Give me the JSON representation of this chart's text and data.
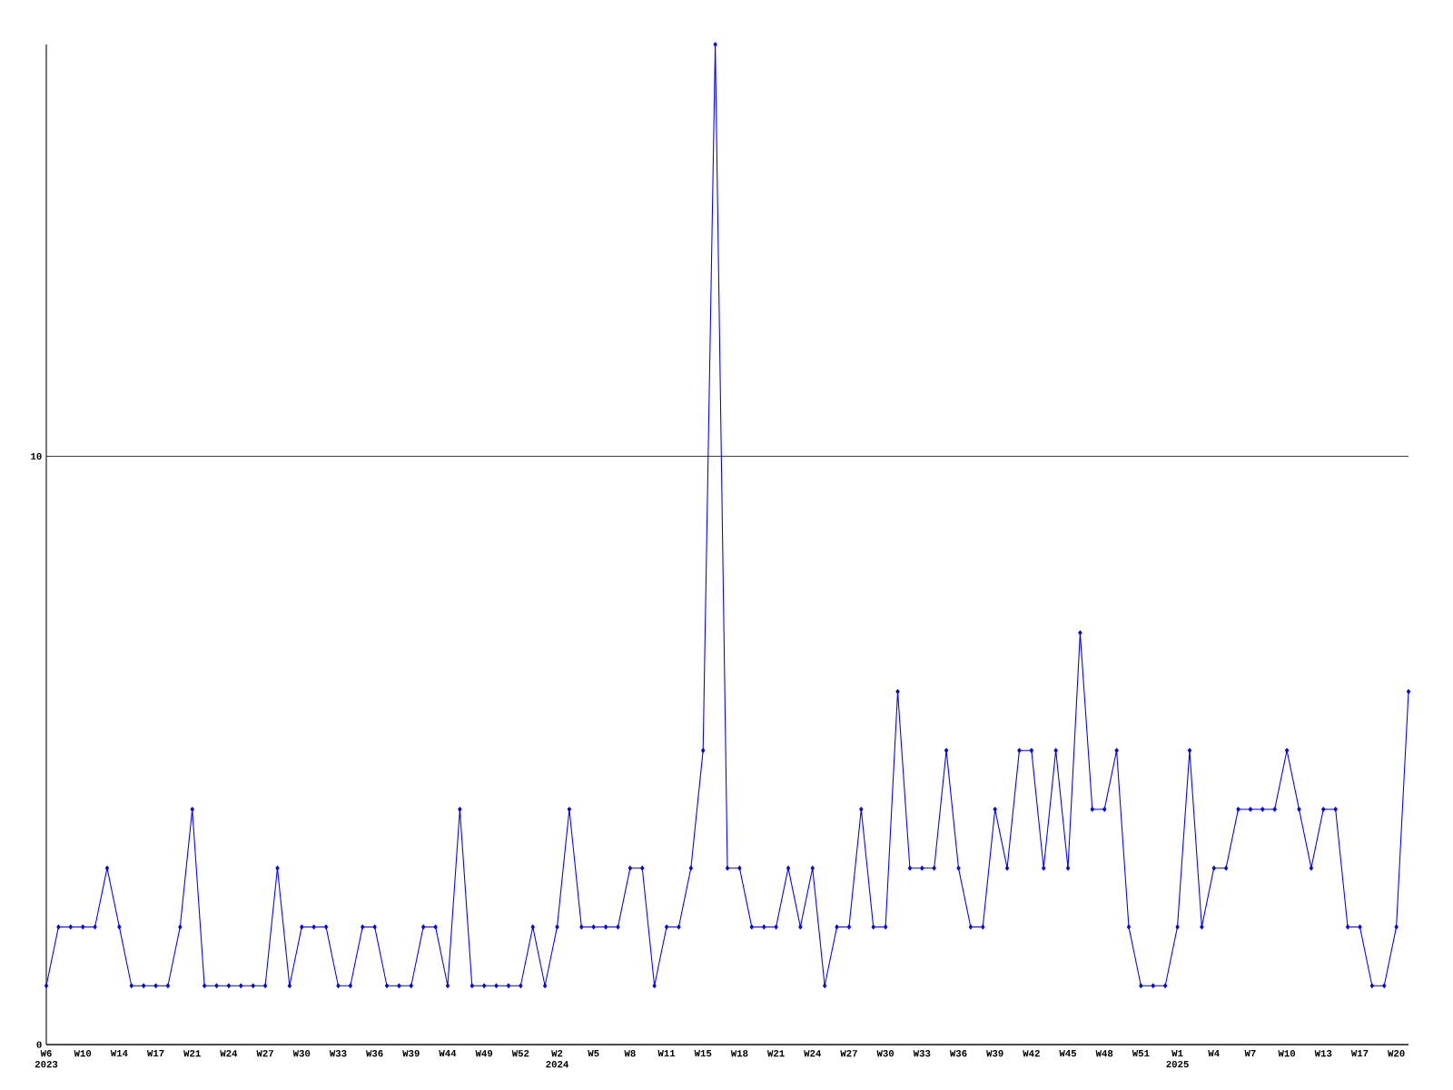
{
  "chart_data": {
    "type": "line",
    "categories": [
      "W6 2023",
      null,
      null,
      "W10",
      null,
      null,
      "W14",
      null,
      null,
      "W17",
      null,
      null,
      "W21",
      null,
      null,
      "W24",
      null,
      null,
      "W27",
      null,
      null,
      "W30",
      null,
      null,
      "W33",
      null,
      null,
      "W36",
      null,
      null,
      "W39",
      null,
      null,
      "W44",
      null,
      null,
      "W49",
      null,
      null,
      "W52",
      null,
      null,
      "W2 2024",
      null,
      null,
      "W5",
      null,
      null,
      "W8",
      null,
      null,
      "W11",
      null,
      null,
      "W15",
      null,
      null,
      "W18",
      null,
      null,
      "W21",
      null,
      null,
      "W24",
      null,
      null,
      "W27",
      null,
      null,
      "W30",
      null,
      null,
      "W33",
      null,
      null,
      "W36",
      null,
      null,
      "W39",
      null,
      null,
      "W42",
      null,
      null,
      "W45",
      null,
      null,
      "W48",
      null,
      null,
      "W51",
      null,
      null,
      "W1 2025",
      null,
      null,
      "W4",
      null,
      null,
      "W7",
      null,
      null,
      "W10",
      null,
      null,
      "W13",
      null,
      null,
      "W17",
      null,
      null,
      "W20",
      null
    ],
    "values": [
      1,
      2,
      2,
      2,
      2,
      3,
      2,
      1,
      1,
      1,
      1,
      2,
      4,
      1,
      1,
      1,
      1,
      1,
      1,
      3,
      1,
      2,
      2,
      2,
      1,
      1,
      2,
      2,
      1,
      1,
      1,
      2,
      2,
      1,
      4,
      1,
      1,
      1,
      1,
      1,
      2,
      1,
      2,
      4,
      2,
      2,
      2,
      2,
      3,
      3,
      1,
      2,
      2,
      3,
      5,
      17,
      3,
      3,
      2,
      2,
      2,
      3,
      2,
      3,
      1,
      2,
      2,
      4,
      2,
      2,
      6,
      3,
      3,
      3,
      5,
      3,
      2,
      2,
      4,
      3,
      5,
      5,
      3,
      5,
      3,
      7,
      4,
      4,
      5,
      2,
      1,
      1,
      1,
      2,
      5,
      2,
      3,
      3,
      4,
      4,
      4,
      4,
      5,
      4,
      3,
      4,
      4,
      2,
      2,
      1,
      1,
      2,
      6
    ],
    "color": "#0000ff",
    "ylim": [
      0,
      17
    ],
    "yticks": [
      0,
      10
    ],
    "grid": "y",
    "marker": "diamond",
    "line_style": "solid"
  }
}
